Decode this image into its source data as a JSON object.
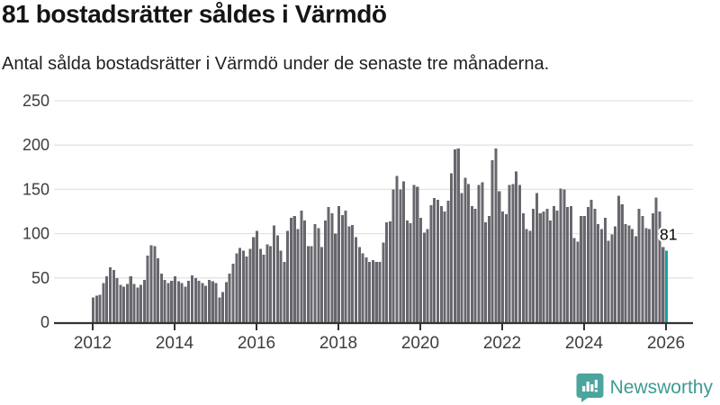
{
  "header": {
    "title": "81 bostadsrätter såldes i Värmdö",
    "subtitle": "Antal sålda bostadsrätter i Värmdö under de senaste tre månaderna."
  },
  "branding": {
    "name": "Newsworthy"
  },
  "colors": {
    "bar": "#68676E",
    "highlight": "#17A3A0",
    "grid": "#E3E3E3",
    "axis": "#333333",
    "tick_text": "#3D3D3D",
    "annotation_text": "#000000",
    "brand_teal": "#4BA59E"
  },
  "chart_data": {
    "type": "bar",
    "title": "81 bostadsrätter såldes i Värmdö",
    "subtitle": "Antal sålda bostadsrätter i Värmdö under de senaste tre månaderna.",
    "xlabel": "",
    "ylabel": "",
    "grid": true,
    "legend_position": "none",
    "ylim": [
      0,
      250
    ],
    "y_ticks": [
      0,
      50,
      100,
      150,
      200,
      250
    ],
    "x_tick_years": [
      2012,
      2014,
      2016,
      2018,
      2020,
      2022,
      2024,
      2026
    ],
    "x_start_year": 2012,
    "bar_interval": "monthly",
    "values": [
      28,
      30,
      31,
      44,
      52,
      62,
      59,
      50,
      42,
      40,
      43,
      52,
      43,
      39,
      42,
      48,
      75,
      87,
      86,
      72,
      55,
      48,
      44,
      47,
      52,
      46,
      44,
      40,
      47,
      53,
      50,
      47,
      44,
      41,
      48,
      46,
      44,
      28,
      34,
      45,
      55,
      66,
      78,
      84,
      81,
      74,
      83,
      96,
      103,
      83,
      76,
      88,
      86,
      109,
      98,
      81,
      68,
      103,
      118,
      120,
      105,
      126,
      115,
      86,
      86,
      111,
      106,
      85,
      115,
      130,
      123,
      100,
      131,
      121,
      126,
      108,
      110,
      96,
      85,
      78,
      73,
      68,
      70,
      68,
      68,
      90,
      113,
      114,
      150,
      165,
      150,
      159,
      115,
      112,
      155,
      153,
      118,
      101,
      105,
      132,
      140,
      138,
      131,
      125,
      137,
      168,
      195,
      196,
      146,
      163,
      156,
      131,
      128,
      155,
      158,
      113,
      120,
      183,
      196,
      148,
      125,
      122,
      155,
      156,
      170,
      155,
      123,
      105,
      103,
      128,
      146,
      123,
      125,
      128,
      115,
      131,
      126,
      151,
      150,
      130,
      131,
      95,
      91,
      120,
      120,
      130,
      138,
      128,
      111,
      105,
      118,
      92,
      99,
      108,
      143,
      133,
      111,
      109,
      105,
      97,
      128,
      120,
      106,
      105,
      123,
      141,
      125,
      85,
      81
    ],
    "highlight_last": true,
    "annotation": {
      "label": "81",
      "value": 81
    }
  }
}
